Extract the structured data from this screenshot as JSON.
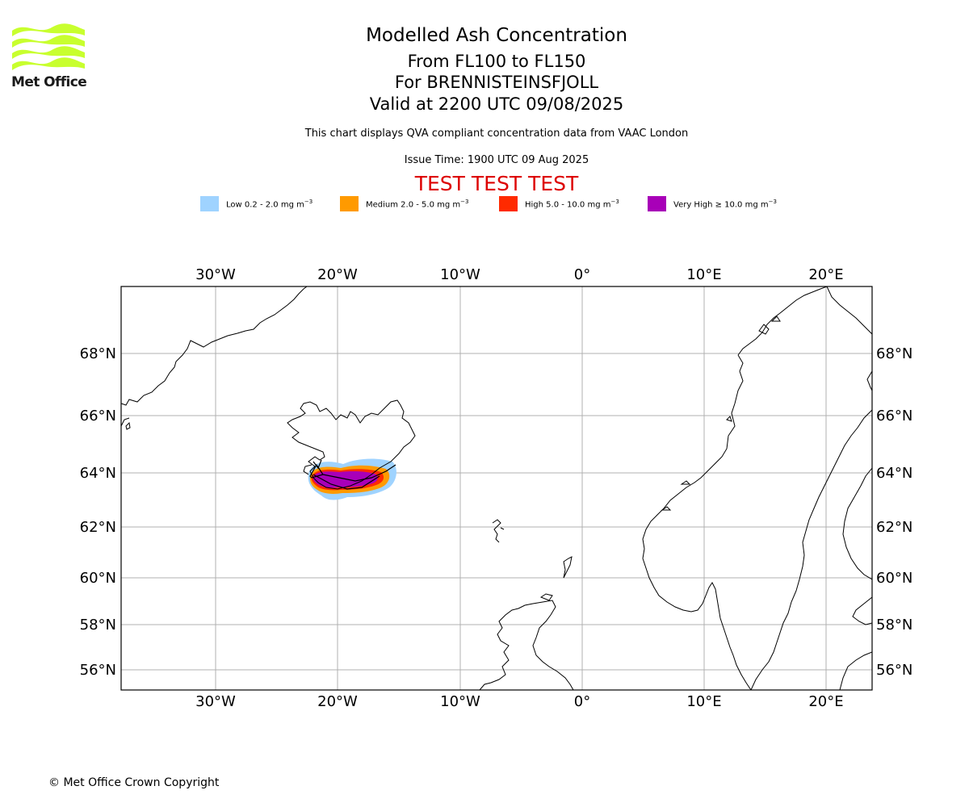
{
  "logo": {
    "brand": "Met Office",
    "colors": {
      "waves": "#c8ff2e",
      "text": "#1a1a1a"
    }
  },
  "header": {
    "title": "Modelled Ash Concentration",
    "level": "From FL100 to FL150",
    "volcano": "For BRENNISTEINSFJOLL",
    "valid": "Valid at 2200 UTC 09/08/2025",
    "note": "This chart displays QVA compliant concentration data from VAAC London",
    "issue": "Issue Time: 1900 UTC 09 Aug 2025",
    "test_banner": "TEST TEST TEST",
    "test_color": "#dd0000"
  },
  "legend": [
    {
      "label": "Low 0.2 - 2.0 mg m",
      "unit_exp": "−3",
      "color": "#9fd3ff"
    },
    {
      "label": "Medium 2.0 - 5.0 mg m",
      "unit_exp": "−3",
      "color": "#ff9a00"
    },
    {
      "label": "High 5.0 - 10.0 mg m",
      "unit_exp": "−3",
      "color": "#ff2a00"
    },
    {
      "label": "Very High  ≥  10.0 mg m",
      "unit_exp": "−3",
      "color": "#a800b8"
    }
  ],
  "map": {
    "lon_ticks": [
      "30°W",
      "20°W",
      "10°W",
      "0°",
      "10°E",
      "20°E"
    ],
    "lat_ticks": [
      "68°N",
      "66°N",
      "64°N",
      "62°N",
      "60°N",
      "58°N",
      "56°N"
    ],
    "grid": true,
    "coastline_color": "#000000",
    "grid_color": "#b0b0b0"
  },
  "footer": {
    "copyright": "© Met Office Crown Copyright"
  }
}
